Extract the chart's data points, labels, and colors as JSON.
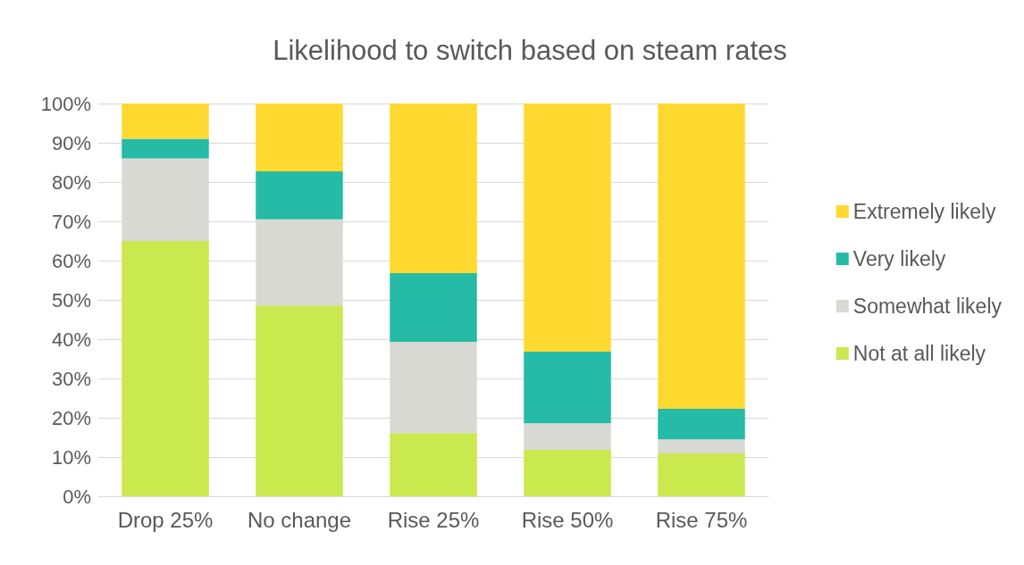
{
  "chart_data": {
    "type": "bar",
    "title": "Likelihood to switch based on steam rates",
    "categories": [
      "Drop 25%",
      "No change",
      "Rise 25%",
      "Rise 50%",
      "Rise 75%"
    ],
    "stacked": true,
    "series": [
      {
        "name": "Not at all likely",
        "color": "#c9e94f",
        "values": [
          65,
          48.6,
          16.1,
          11.8,
          10.9
        ]
      },
      {
        "name": "Somewhat likely",
        "color": "#d9d9d4",
        "values": [
          21,
          21.9,
          23.2,
          6.8,
          3.6
        ]
      },
      {
        "name": "Very likely",
        "color": "#26bba6",
        "values": [
          5,
          12.2,
          17.5,
          18.2,
          7.8
        ]
      },
      {
        "name": "Extremely likely",
        "color": "#ffd92f",
        "values": [
          9,
          17.3,
          43.2,
          63.2,
          77.7
        ]
      }
    ],
    "ylim": [
      0,
      100
    ],
    "yticks": [
      {
        "value": 0,
        "label": "0%"
      },
      {
        "value": 10,
        "label": "10%"
      },
      {
        "value": 20,
        "label": "20%"
      },
      {
        "value": 30,
        "label": "30%"
      },
      {
        "value": 40,
        "label": "40%"
      },
      {
        "value": 50,
        "label": "50%"
      },
      {
        "value": 60,
        "label": "60%"
      },
      {
        "value": 70,
        "label": "70%"
      },
      {
        "value": 80,
        "label": "80%"
      },
      {
        "value": 90,
        "label": "90%"
      },
      {
        "value": 100,
        "label": "100%"
      }
    ],
    "grid": "y",
    "legend": "right"
  }
}
